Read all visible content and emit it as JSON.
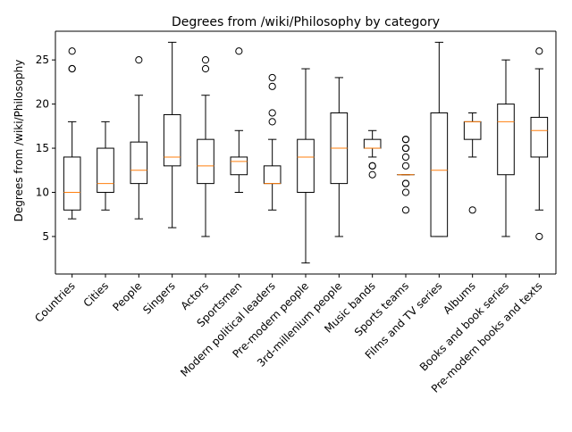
{
  "chart_data": {
    "type": "box",
    "title": "Degrees from /wiki/Philosophy by category",
    "xlabel": "",
    "ylabel": "Degrees from /wiki/Philosophy",
    "ylim": [
      0.75,
      28.25
    ],
    "yticks": [
      5,
      10,
      15,
      20,
      25
    ],
    "grid": false,
    "colors": {
      "box": "#000000",
      "median": "#ff7f0e",
      "outlier": "#000000"
    },
    "categories": [
      "Countries",
      "Cities",
      "People",
      "Singers",
      "Actors",
      "Sportsmen",
      "Modern political leaders",
      "Pre-modern people",
      "3rd-millenium people",
      "Music bands",
      "Sports teams",
      "Films and TV series",
      "Albums",
      "Books and book series",
      "Pre-modern books and texts"
    ],
    "boxes": [
      {
        "whislo": 7,
        "q1": 8,
        "med": 10,
        "q3": 14,
        "whishi": 18,
        "fliers": [
          24,
          24,
          26
        ]
      },
      {
        "whislo": 8,
        "q1": 10,
        "med": 11,
        "q3": 15,
        "whishi": 18,
        "fliers": []
      },
      {
        "whislo": 7,
        "q1": 11,
        "med": 12.5,
        "q3": 15.7,
        "whishi": 21,
        "fliers": [
          25
        ]
      },
      {
        "whislo": 6,
        "q1": 13,
        "med": 14,
        "q3": 18.8,
        "whishi": 27,
        "fliers": []
      },
      {
        "whislo": 5,
        "q1": 11,
        "med": 13,
        "q3": 16,
        "whishi": 21,
        "fliers": [
          24,
          25
        ]
      },
      {
        "whislo": 10,
        "q1": 12,
        "med": 13.5,
        "q3": 14,
        "whishi": 17,
        "fliers": [
          26
        ]
      },
      {
        "whislo": 8,
        "q1": 11,
        "med": 11,
        "q3": 13,
        "whishi": 16,
        "fliers": [
          18,
          19,
          22,
          23
        ]
      },
      {
        "whislo": 2,
        "q1": 10,
        "med": 14,
        "q3": 16,
        "whishi": 24,
        "fliers": []
      },
      {
        "whislo": 5,
        "q1": 11,
        "med": 15,
        "q3": 19,
        "whishi": 23,
        "fliers": []
      },
      {
        "whislo": 14,
        "q1": 15,
        "med": 15,
        "q3": 16,
        "whishi": 17,
        "fliers": [
          12,
          13,
          13
        ]
      },
      {
        "whislo": 12,
        "q1": 12,
        "med": 12,
        "q3": 12,
        "whishi": 12,
        "fliers": [
          8,
          10,
          11,
          11,
          13,
          14,
          15,
          15,
          16,
          16
        ]
      },
      {
        "whislo": 5,
        "q1": 5,
        "med": 12.5,
        "q3": 19,
        "whishi": 27,
        "fliers": []
      },
      {
        "whislo": 14,
        "q1": 16,
        "med": 18,
        "q3": 18,
        "whishi": 19,
        "fliers": [
          8
        ]
      },
      {
        "whislo": 5,
        "q1": 12,
        "med": 18,
        "q3": 20,
        "whishi": 25,
        "fliers": []
      },
      {
        "whislo": 8,
        "q1": 14,
        "med": 17,
        "q3": 18.5,
        "whishi": 24,
        "fliers": [
          5,
          26
        ]
      }
    ]
  }
}
